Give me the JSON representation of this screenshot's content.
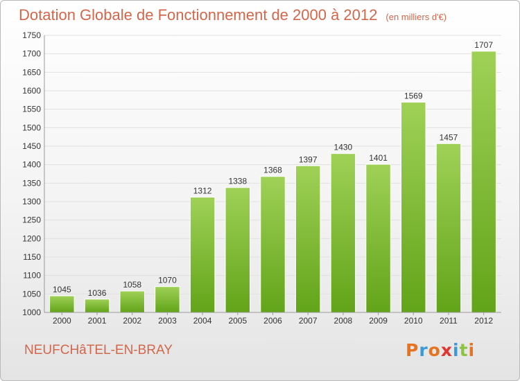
{
  "header": {
    "title": "Dotation Globale de Fonctionnement de 2000 à 2012",
    "subtitle": "(en milliers d'€)"
  },
  "footer": {
    "town": "NEUFCHâTEL-EN-BRAY",
    "logo_text": "Proxiti",
    "logo_colors": [
      "#e8731f",
      "#3a9ad9",
      "#e8731f",
      "#e3342f",
      "#3a9ad9",
      "#8bc53f",
      "#e8731f"
    ]
  },
  "colors": {
    "bar_top": "#9fd157",
    "bar_bottom": "#62a419",
    "grid": "#e0e0e0",
    "text": "#333333",
    "accent": "#d4664a"
  },
  "chart_data": {
    "type": "bar",
    "title": "Dotation Globale de Fonctionnement de 2000 à 2012",
    "subtitle": "(en milliers d'€)",
    "categories": [
      "2000",
      "2001",
      "2002",
      "2003",
      "2004",
      "2005",
      "2006",
      "2007",
      "2008",
      "2009",
      "2010",
      "2011",
      "2012"
    ],
    "values": [
      1045,
      1036,
      1058,
      1070,
      1312,
      1338,
      1368,
      1397,
      1430,
      1401,
      1569,
      1457,
      1707
    ],
    "ylim": [
      1000,
      1750
    ],
    "yticks": [
      1000,
      1050,
      1100,
      1150,
      1200,
      1250,
      1300,
      1350,
      1400,
      1450,
      1500,
      1550,
      1600,
      1650,
      1700,
      1750
    ],
    "grid": true,
    "data_labels": true
  }
}
